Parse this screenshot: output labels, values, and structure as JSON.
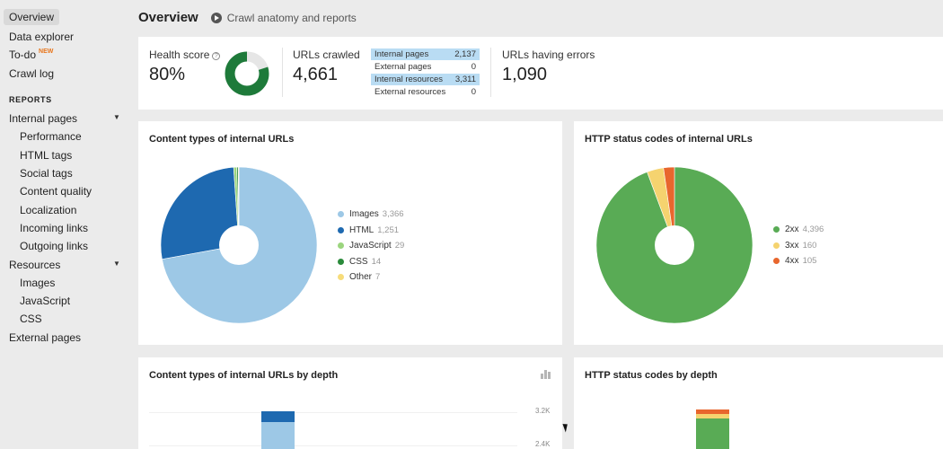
{
  "sidebar": {
    "items": [
      {
        "label": "Overview"
      },
      {
        "label": "Data explorer"
      },
      {
        "label": "To-do",
        "badge": "NEW"
      },
      {
        "label": "Crawl log"
      }
    ],
    "reports_heading": "REPORTS",
    "internal_pages": {
      "label": "Internal pages",
      "children": [
        "Performance",
        "HTML tags",
        "Social tags",
        "Content quality",
        "Localization",
        "Incoming links",
        "Outgoing links"
      ]
    },
    "resources": {
      "label": "Resources",
      "children": [
        "Images",
        "JavaScript",
        "CSS"
      ]
    },
    "external_pages": "External pages"
  },
  "header": {
    "title": "Overview",
    "link": "Crawl anatomy and reports"
  },
  "stats": {
    "health_score": {
      "label": "Health score",
      "value": "80%",
      "percent": 80
    },
    "urls_crawled": {
      "label": "URLs crawled",
      "value": "4,661"
    },
    "breakdown": [
      {
        "label": "Internal pages",
        "value": "2,137",
        "highlight": true
      },
      {
        "label": "External pages",
        "value": "0",
        "highlight": false
      },
      {
        "label": "Internal resources",
        "value": "3,311",
        "highlight": true
      },
      {
        "label": "External resources",
        "value": "0",
        "highlight": false
      }
    ],
    "errors": {
      "label": "URLs having errors",
      "value": "1,090"
    }
  },
  "content_types": {
    "title": "Content types of internal URLs",
    "slices": [
      {
        "label": "Images",
        "value": "3,366",
        "num": 3366,
        "color": "#9dc8e6"
      },
      {
        "label": "HTML",
        "value": "1,251",
        "num": 1251,
        "color": "#1e69b0"
      },
      {
        "label": "JavaScript",
        "value": "29",
        "num": 29,
        "color": "#9bd57e"
      },
      {
        "label": "CSS",
        "value": "14",
        "num": 14,
        "color": "#2a8a3a"
      },
      {
        "label": "Other",
        "value": "7",
        "num": 7,
        "color": "#f7dc7a"
      }
    ]
  },
  "http_status": {
    "title": "HTTP status codes of internal URLs",
    "slices": [
      {
        "label": "2xx",
        "value": "4,396",
        "num": 4396,
        "color": "#59ab55"
      },
      {
        "label": "3xx",
        "value": "160",
        "num": 160,
        "color": "#f5d36f"
      },
      {
        "label": "4xx",
        "value": "105",
        "num": 105,
        "color": "#e8662d"
      }
    ]
  },
  "depth_content": {
    "title": "Content types of internal URLs by depth",
    "y_ticks": [
      "3.2K",
      "2.4K"
    ]
  },
  "depth_status": {
    "title": "HTTP status codes by depth"
  }
}
